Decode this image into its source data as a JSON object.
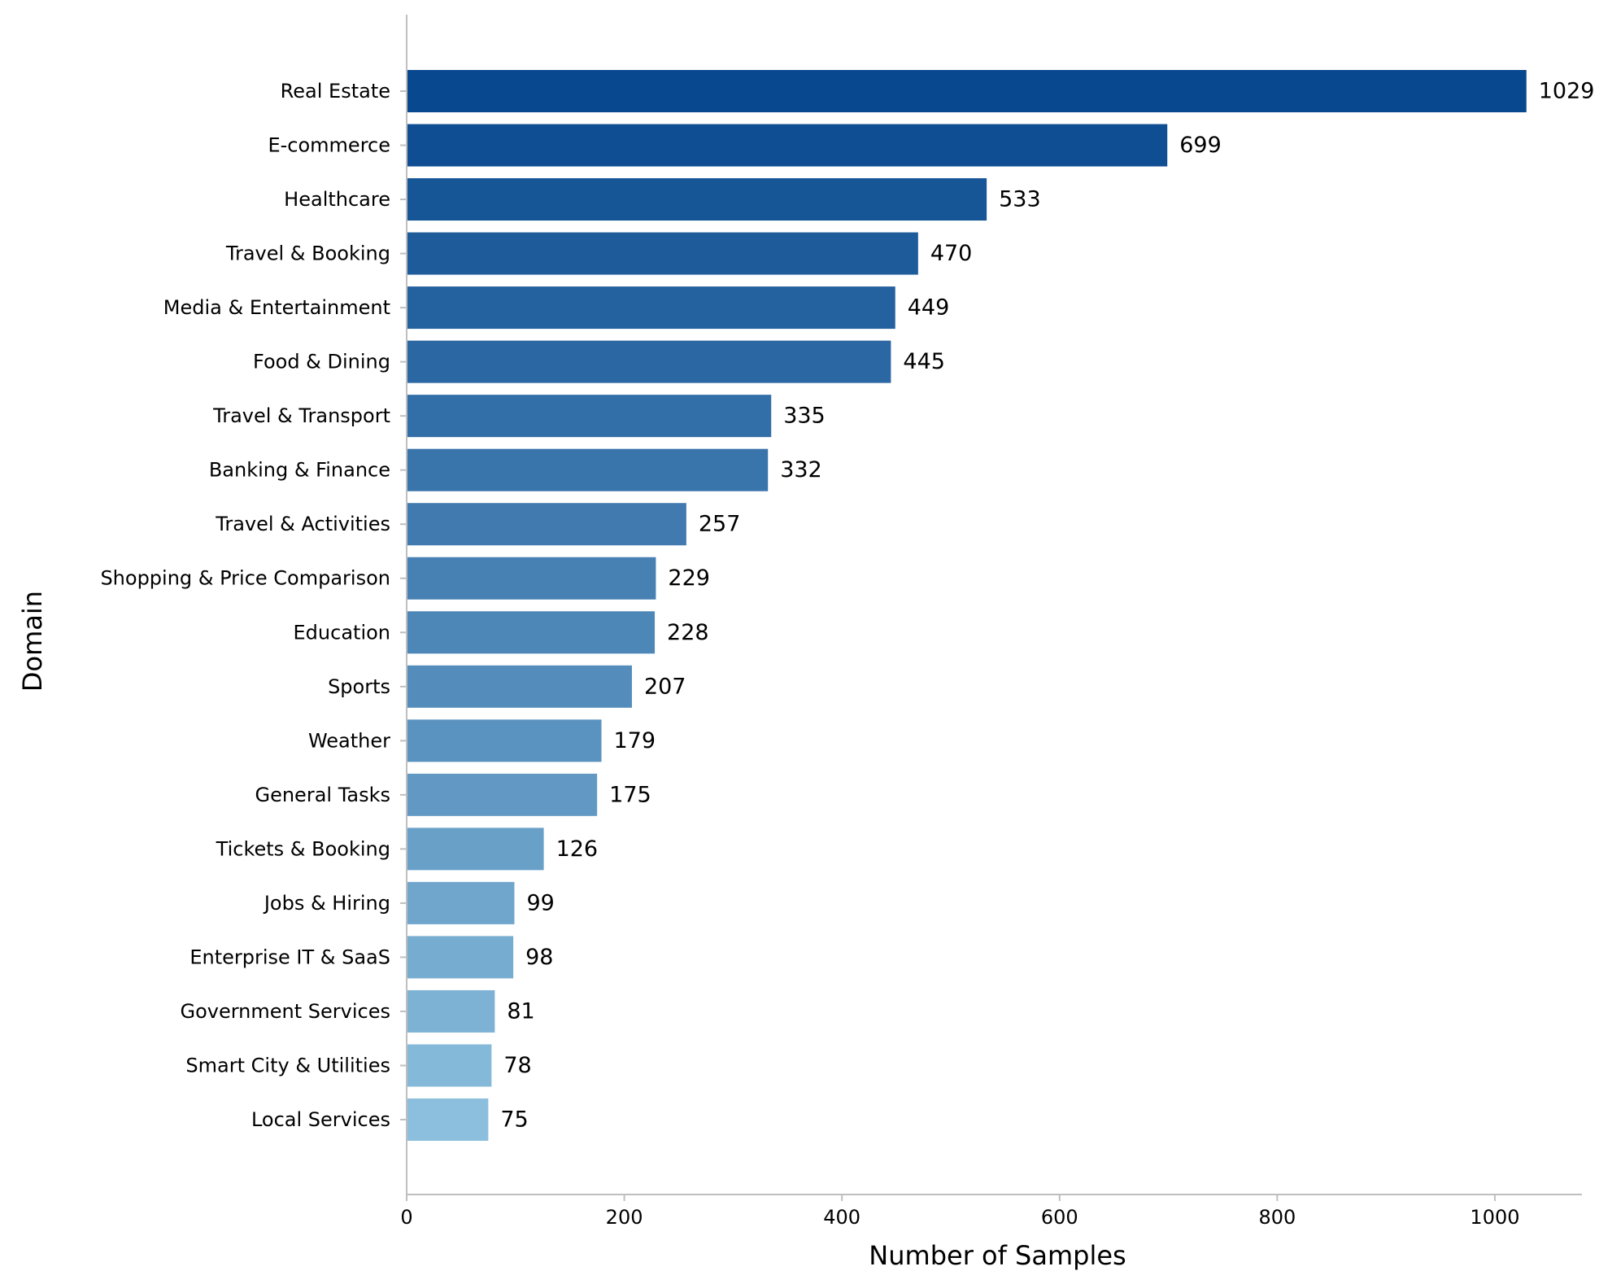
{
  "chart_data": {
    "type": "bar",
    "orientation": "horizontal",
    "title": "",
    "xlabel": "Number of Samples",
    "ylabel": "Domain",
    "xlim": [
      0,
      1080
    ],
    "xticks": [
      0,
      200,
      400,
      600,
      800,
      1000
    ],
    "grid": false,
    "legend": "none",
    "categories": [
      "Real Estate",
      "E-commerce",
      "Healthcare",
      "Travel & Booking",
      "Media & Entertainment",
      "Food & Dining",
      "Travel & Transport",
      "Banking & Finance",
      "Travel & Activities",
      "Shopping & Price Comparison",
      "Education",
      "Sports",
      "Weather",
      "General Tasks",
      "Tickets & Booking",
      "Jobs & Hiring",
      "Enterprise IT & SaaS",
      "Government Services",
      "Smart City & Utilities",
      "Local Services"
    ],
    "values": [
      1029,
      699,
      533,
      470,
      449,
      445,
      335,
      332,
      257,
      229,
      228,
      207,
      179,
      175,
      126,
      99,
      98,
      81,
      78,
      75
    ],
    "colors": {
      "bar_darkest": "#08488e",
      "bar_lightest": "#8cbfdd",
      "axis": "#bfbfbf"
    }
  }
}
